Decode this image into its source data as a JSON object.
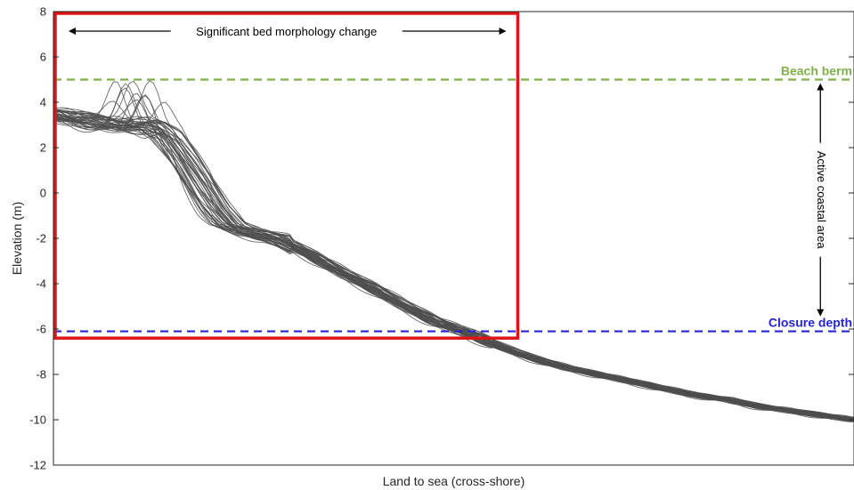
{
  "chart_data": {
    "type": "line",
    "title": "",
    "xlabel": "Land to sea (cross-shore)",
    "ylabel": "Elevation (m)",
    "xlim": [
      0,
      100
    ],
    "ylim": [
      -12,
      8
    ],
    "yticks": [
      -12,
      -10,
      -8,
      -6,
      -4,
      -2,
      0,
      2,
      4,
      6,
      8
    ],
    "ytick_labels": [
      "-12",
      "-10",
      "-8",
      "-6",
      "-4",
      "-2",
      "0",
      "2",
      "4",
      "6",
      "8"
    ],
    "x_tick_labels_shown": false,
    "grid": false,
    "profile_color": "#4d4d4d",
    "profile_count": 40,
    "representative_profile": {
      "x": [
        0,
        4,
        8,
        12,
        14,
        16,
        18,
        20,
        22,
        24,
        28,
        32,
        36,
        40,
        44,
        48,
        52,
        56,
        60,
        64,
        68,
        72,
        76,
        80,
        84,
        88,
        92,
        96,
        100
      ],
      "y": [
        3.5,
        3.2,
        3.0,
        3.0,
        2.6,
        1.6,
        0.5,
        -0.6,
        -1.4,
        -1.7,
        -2.0,
        -2.7,
        -3.5,
        -4.2,
        -5.0,
        -5.7,
        -6.2,
        -6.8,
        -7.3,
        -7.7,
        -8.0,
        -8.3,
        -8.6,
        -8.9,
        -9.1,
        -9.4,
        -9.6,
        -9.8,
        -10.0
      ]
    },
    "reference_lines": [
      {
        "label": "Beach berm",
        "y": 5.0,
        "color": "#7fb04a"
      },
      {
        "label": "Closure depth",
        "y": -6.1,
        "color": "#2424d6"
      }
    ],
    "highlight_box": {
      "x_range": [
        0,
        58
      ],
      "y_range": [
        -6.4,
        8
      ],
      "color": "#e01414",
      "label": "Significant bed morphology change"
    },
    "vertical_annotation": {
      "label": "Active coastal area",
      "x": 95.8,
      "y_range": [
        -5.4,
        4.8
      ]
    }
  }
}
